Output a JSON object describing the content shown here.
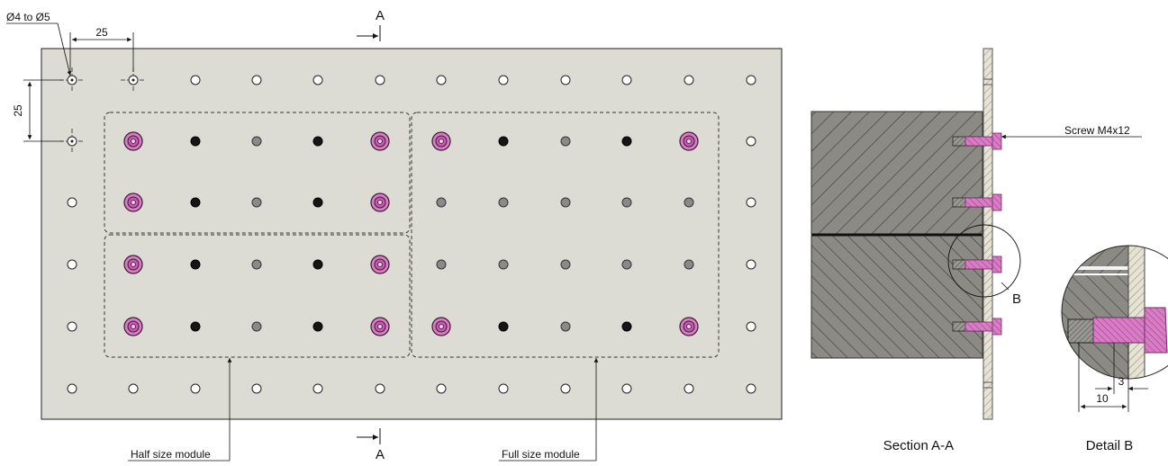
{
  "front_view": {
    "hole_diameter_note": "Ø4 to Ø5",
    "pitch_horizontal": "25",
    "pitch_vertical": "25",
    "section_marker": "A",
    "half_module_label": "Half size module",
    "full_module_label": "Full size module"
  },
  "section_view": {
    "title": "Section A-A",
    "screw_label": "Screw M4x12",
    "detail_marker": "B"
  },
  "detail_view": {
    "title": "Detail B",
    "dim_depth": "10",
    "dim_plate": "3"
  },
  "colors": {
    "plate": "#dcdcd4",
    "screw": "#d97cc6",
    "hatch_fill": "#8c8a84",
    "hole_dark": "#161616",
    "hole_gray": "#8a8a8a"
  }
}
